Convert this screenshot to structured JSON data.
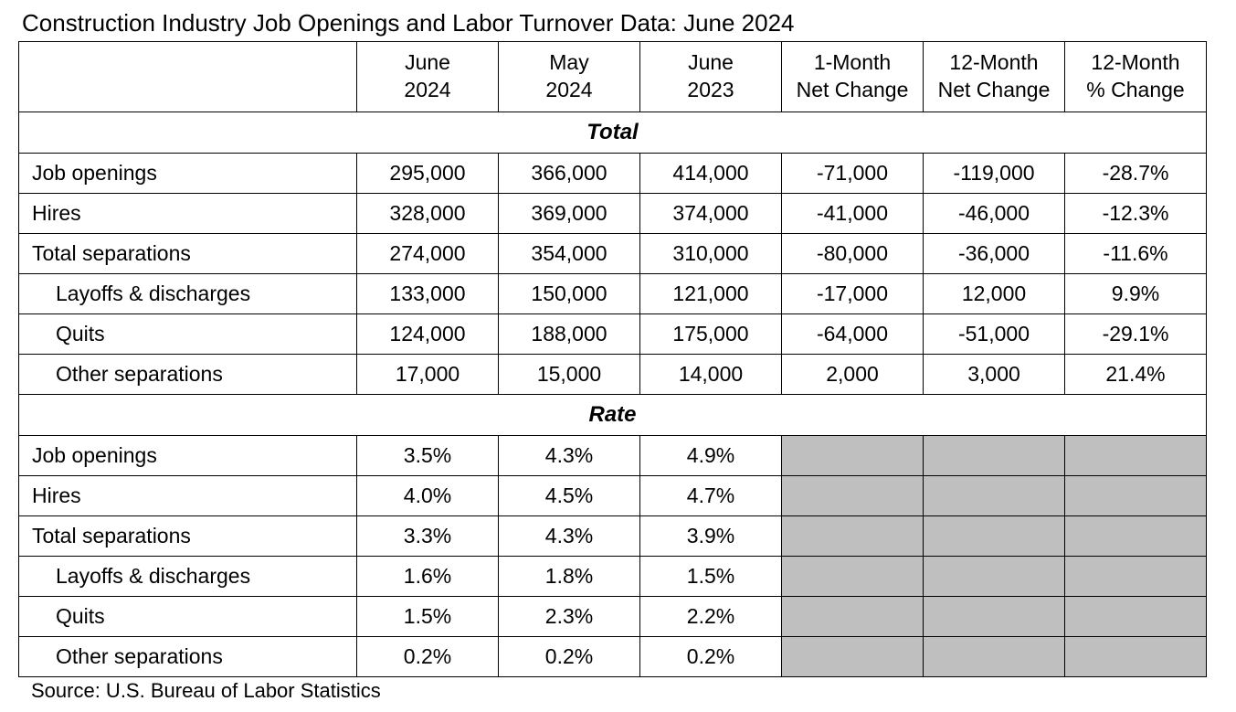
{
  "title": "Construction Industry Job Openings and Labor Turnover Data: June 2024",
  "source": "Source: U.S. Bureau of Labor Statistics",
  "columns": {
    "c1_line1": "June",
    "c1_line2": "2024",
    "c2_line1": "May",
    "c2_line2": "2024",
    "c3_line1": "June",
    "c3_line2": "2023",
    "c4_line1": "1-Month",
    "c4_line2": "Net Change",
    "c5_line1": "12-Month",
    "c5_line2": "Net Change",
    "c6_line1": "12-Month",
    "c6_line2": "% Change"
  },
  "sections": {
    "total_label": "Total",
    "rate_label": "Rate"
  },
  "total": {
    "job_openings": {
      "label": "Job openings",
      "jun24": "295,000",
      "may24": "366,000",
      "jun23": "414,000",
      "m1": "-71,000",
      "m12": "-119,000",
      "pct": "-28.7%"
    },
    "hires": {
      "label": "Hires",
      "jun24": "328,000",
      "may24": "369,000",
      "jun23": "374,000",
      "m1": "-41,000",
      "m12": "-46,000",
      "pct": "-12.3%"
    },
    "total_sep": {
      "label": "Total separations",
      "jun24": "274,000",
      "may24": "354,000",
      "jun23": "310,000",
      "m1": "-80,000",
      "m12": "-36,000",
      "pct": "-11.6%"
    },
    "layoffs": {
      "label": "Layoffs & discharges",
      "jun24": "133,000",
      "may24": "150,000",
      "jun23": "121,000",
      "m1": "-17,000",
      "m12": "12,000",
      "pct": "9.9%"
    },
    "quits": {
      "label": "Quits",
      "jun24": "124,000",
      "may24": "188,000",
      "jun23": "175,000",
      "m1": "-64,000",
      "m12": "-51,000",
      "pct": "-29.1%"
    },
    "other": {
      "label": "Other separations",
      "jun24": "17,000",
      "may24": "15,000",
      "jun23": "14,000",
      "m1": "2,000",
      "m12": "3,000",
      "pct": "21.4%"
    }
  },
  "rate": {
    "job_openings": {
      "label": "Job openings",
      "jun24": "3.5%",
      "may24": "4.3%",
      "jun23": "4.9%"
    },
    "hires": {
      "label": "Hires",
      "jun24": "4.0%",
      "may24": "4.5%",
      "jun23": "4.7%"
    },
    "total_sep": {
      "label": "Total separations",
      "jun24": "3.3%",
      "may24": "4.3%",
      "jun23": "3.9%"
    },
    "layoffs": {
      "label": "Layoffs & discharges",
      "jun24": "1.6%",
      "may24": "1.8%",
      "jun23": "1.5%"
    },
    "quits": {
      "label": "Quits",
      "jun24": "1.5%",
      "may24": "2.3%",
      "jun23": "2.2%"
    },
    "other": {
      "label": "Other separations",
      "jun24": "0.2%",
      "may24": "0.2%",
      "jun23": "0.2%"
    }
  },
  "style": {
    "grey_bg": "#bfbfbf",
    "border_color": "#000000",
    "font_family": "Arial",
    "title_fontsize": 26,
    "cell_fontsize": 23
  }
}
